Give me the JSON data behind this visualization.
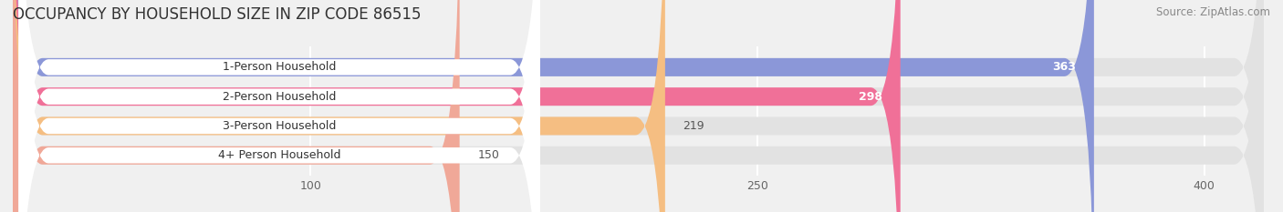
{
  "title": "OCCUPANCY BY HOUSEHOLD SIZE IN ZIP CODE 86515",
  "source": "Source: ZipAtlas.com",
  "categories": [
    "1-Person Household",
    "2-Person Household",
    "3-Person Household",
    "4+ Person Household"
  ],
  "values": [
    363,
    298,
    219,
    150
  ],
  "bar_colors": [
    "#8b97d8",
    "#f07098",
    "#f5be82",
    "#f0a898"
  ],
  "xticks": [
    100,
    250,
    400
  ],
  "x_max": 420,
  "background_color": "#f0f0f0",
  "bar_bg_color": "#e2e2e2",
  "title_fontsize": 12,
  "source_fontsize": 8.5,
  "label_fontsize": 9,
  "value_fontsize": 9,
  "value_inside_threshold": 250
}
